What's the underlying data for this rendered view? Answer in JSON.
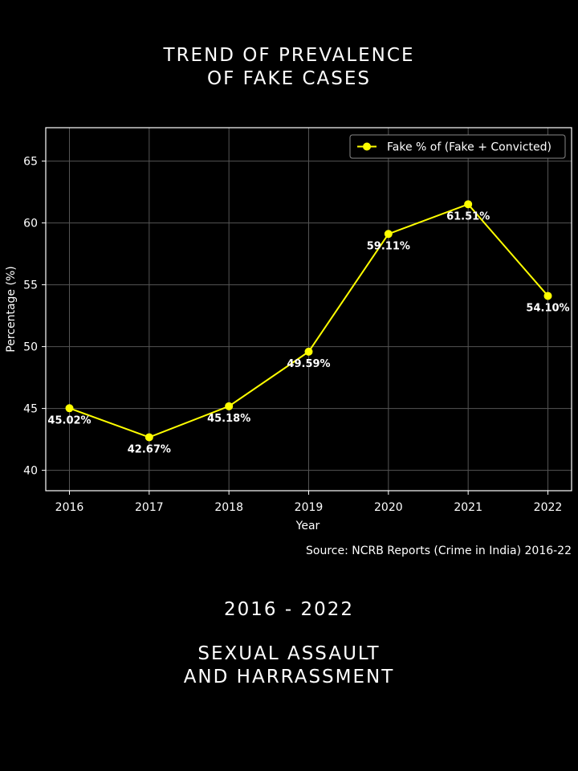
{
  "header": {
    "title_line1": "TREND OF PREVALENCE",
    "title_line2": "OF FAKE CASES"
  },
  "footer": {
    "period": "2016 - 2022",
    "subject_line1": "SEXUAL ASSAULT",
    "subject_line2": "AND HARRASSMENT"
  },
  "chart_data": {
    "type": "line",
    "title": "",
    "xlabel": "Year",
    "ylabel": "Percentage (%)",
    "source": "Source: NCRB Reports (Crime in India) 2016-22",
    "categories": [
      "2016",
      "2017",
      "2018",
      "2019",
      "2020",
      "2021",
      "2022"
    ],
    "series": [
      {
        "name": "Fake % of (Fake + Convicted)",
        "values": [
          45.02,
          42.67,
          45.18,
          49.59,
          59.11,
          61.51,
          54.1
        ],
        "labels": [
          "45.02%",
          "42.67%",
          "45.18%",
          "49.59%",
          "59.11%",
          "61.51%",
          "54.10%"
        ],
        "color": "#ffff00"
      }
    ],
    "yticks": [
      40,
      45,
      50,
      55,
      60,
      65
    ],
    "ylim": [
      38.35,
      67.7
    ],
    "grid": true,
    "legend": "top-right",
    "colors": {
      "background": "#000000",
      "axes": "#ffffff",
      "grid": "#555555",
      "text": "#ffffff"
    }
  }
}
